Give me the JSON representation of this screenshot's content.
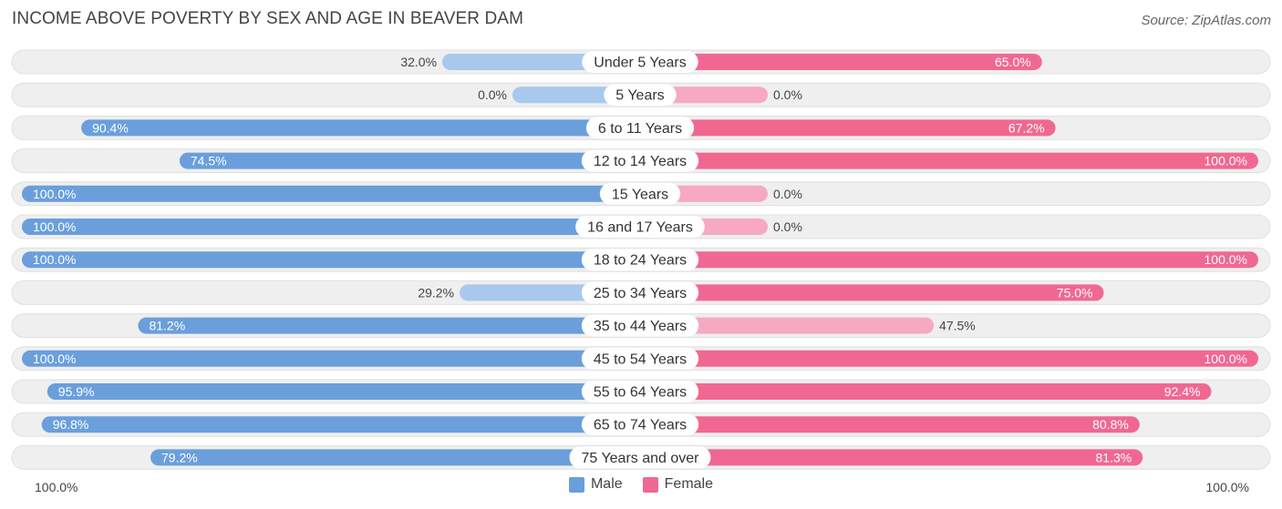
{
  "title": "INCOME ABOVE POVERTY BY SEX AND AGE IN BEAVER DAM",
  "source": "Source: ZipAtlas.com",
  "legend": {
    "male_label": "Male",
    "female_label": "Female"
  },
  "axis": {
    "left_label": "100.0%",
    "right_label": "100.0%"
  },
  "colors": {
    "male_strong": "#6a9fdc",
    "male_light": "#a9c8ee",
    "female_strong": "#f06891",
    "female_light": "#f6a9c1",
    "track": "#efefef",
    "track_border": "#e0e0e0"
  },
  "chart_data": {
    "type": "bar",
    "orientation": "horizontal-diverging",
    "categories": [
      "Under 5 Years",
      "5 Years",
      "6 to 11 Years",
      "12 to 14 Years",
      "15 Years",
      "16 and 17 Years",
      "18 to 24 Years",
      "25 to 34 Years",
      "35 to 44 Years",
      "45 to 54 Years",
      "55 to 64 Years",
      "65 to 74 Years",
      "75 Years and over"
    ],
    "series": [
      {
        "name": "Male",
        "values": [
          32.0,
          0.0,
          90.4,
          74.5,
          100.0,
          100.0,
          100.0,
          29.2,
          81.2,
          100.0,
          95.9,
          96.8,
          79.2
        ],
        "labels": [
          "32.0%",
          "0.0%",
          "90.4%",
          "74.5%",
          "100.0%",
          "100.0%",
          "100.0%",
          "29.2%",
          "81.2%",
          "100.0%",
          "95.9%",
          "96.8%",
          "79.2%"
        ]
      },
      {
        "name": "Female",
        "values": [
          65.0,
          0.0,
          67.2,
          100.0,
          0.0,
          0.0,
          100.0,
          75.0,
          47.5,
          100.0,
          92.4,
          80.8,
          81.3
        ],
        "labels": [
          "65.0%",
          "0.0%",
          "67.2%",
          "100.0%",
          "0.0%",
          "0.0%",
          "100.0%",
          "75.0%",
          "47.5%",
          "100.0%",
          "92.4%",
          "80.8%",
          "81.3%"
        ]
      }
    ],
    "xlim": [
      0,
      100
    ],
    "title": "INCOME ABOVE POVERTY BY SEX AND AGE IN BEAVER DAM"
  }
}
